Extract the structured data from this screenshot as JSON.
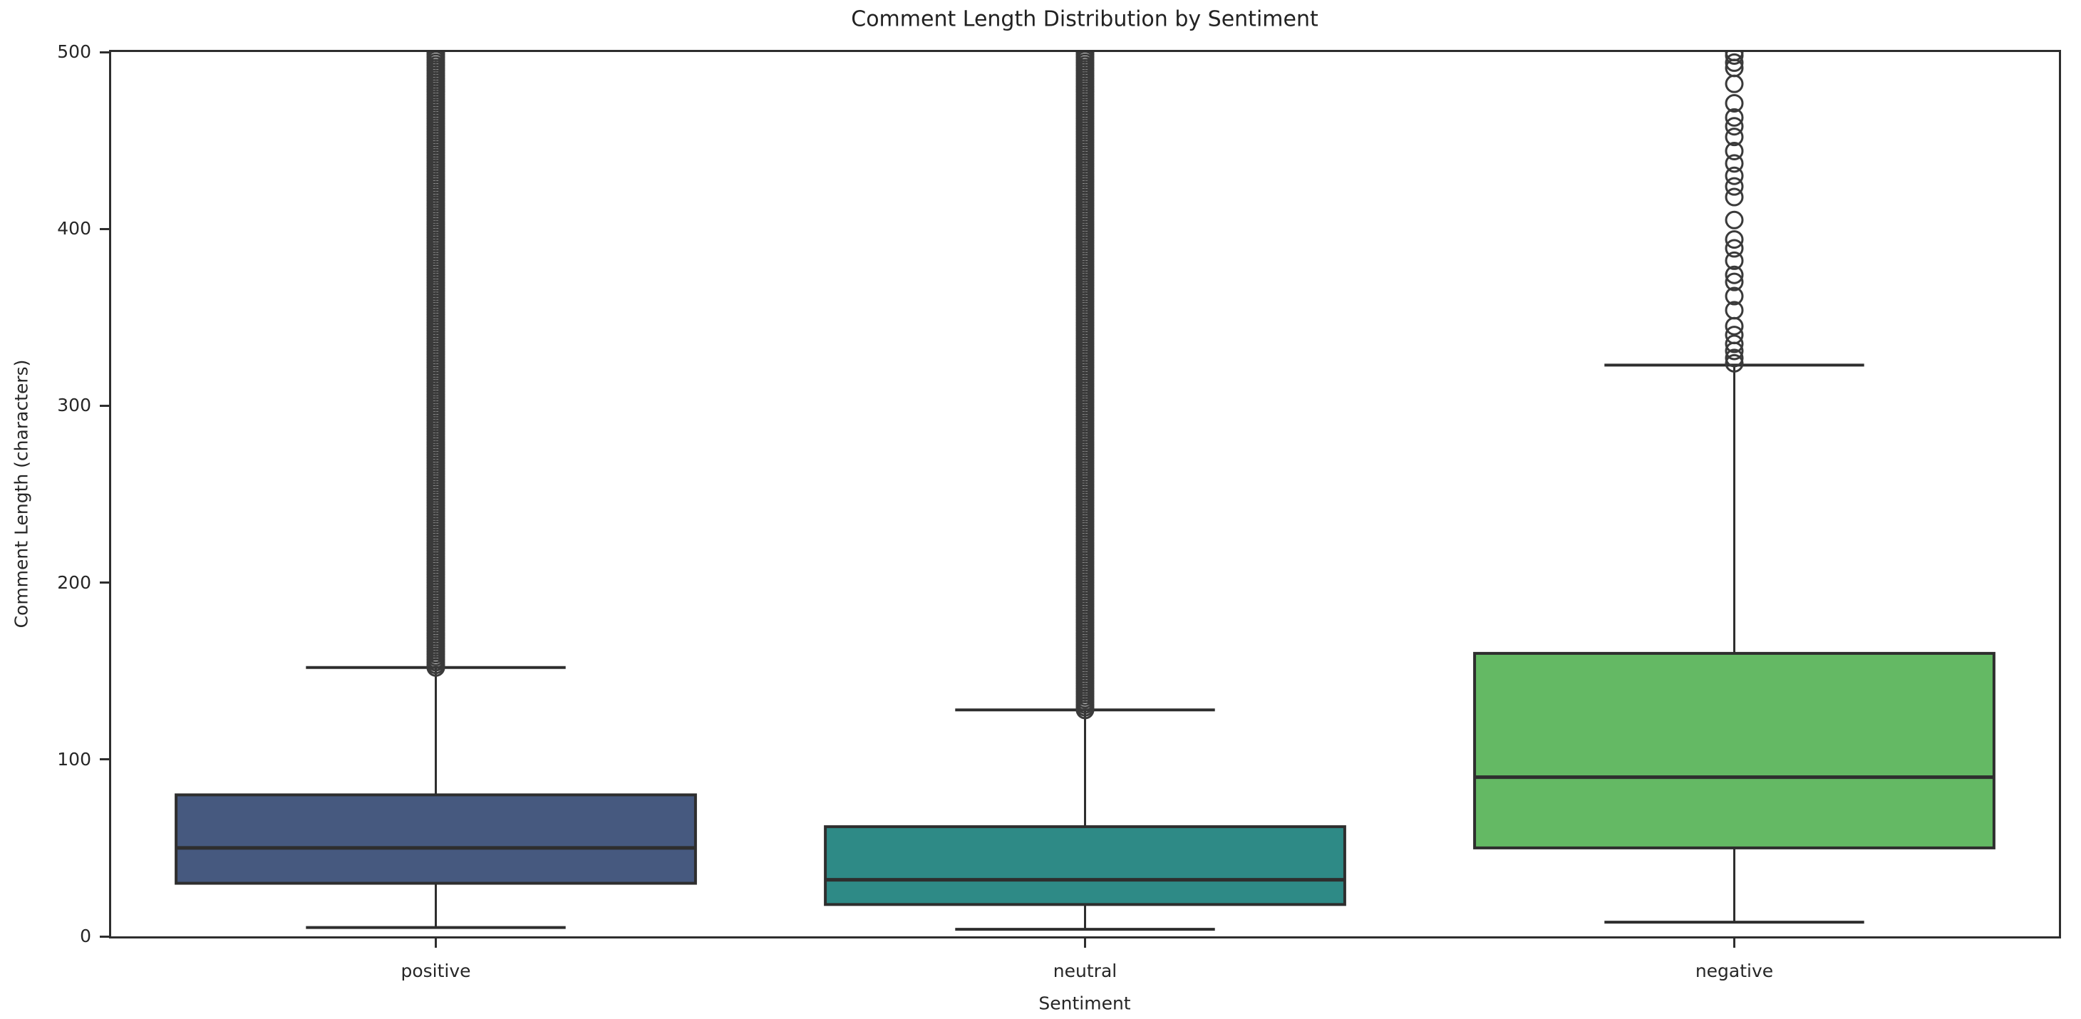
{
  "title": "Comment Length Distribution by Sentiment",
  "axes": {
    "x_label": "Sentiment",
    "y_label": "Comment Length (characters)",
    "y_ticks": [
      0,
      100,
      200,
      300,
      400,
      500
    ],
    "y_min": 0,
    "y_max": 500,
    "categories": [
      "positive",
      "neutral",
      "negative"
    ]
  },
  "colors": {
    "line": "#2e2e2e",
    "flier_edge": "#3a3a3a",
    "background": "#ffffff",
    "positive_box": "#46597f",
    "neutral_box": "#2e8a86",
    "negative_box": "#64b964"
  },
  "chart_data": {
    "type": "boxplot",
    "title": "Comment Length Distribution by Sentiment",
    "xlabel": "Sentiment",
    "ylabel": "Comment Length (characters)",
    "ylim": [
      0,
      500
    ],
    "grid": false,
    "legend": false,
    "box_width_fraction": 0.8,
    "cap_width_fraction": 0.4,
    "categories": [
      "positive",
      "neutral",
      "negative"
    ],
    "series": [
      {
        "name": "positive",
        "color": "#46597f",
        "q1": 30,
        "median": 50,
        "q3": 80,
        "whisker_low": 5,
        "whisker_high": 152,
        "outliers": {
          "type": "dense",
          "min": 152,
          "max": 500,
          "step": 1.5,
          "note": "continuous heavily-overplotted column of open-circle fliers from 152 to 500 (clipped at axis top)"
        }
      },
      {
        "name": "neutral",
        "color": "#2e8a86",
        "q1": 18,
        "median": 32,
        "q3": 62,
        "whisker_low": 4,
        "whisker_high": 128,
        "outliers": {
          "type": "dense",
          "min": 128,
          "max": 500,
          "step": 1.5,
          "note": "continuous heavily-overplotted column of open-circle fliers from 128 to 500 (clipped at axis top)"
        }
      },
      {
        "name": "negative",
        "color": "#64b964",
        "q1": 50,
        "median": 90,
        "q3": 160,
        "whisker_low": 8,
        "whisker_high": 323,
        "outliers": {
          "type": "list",
          "values": [
            500,
            498,
            494,
            491,
            482,
            471,
            463,
            458,
            452,
            444,
            437,
            430,
            424,
            418,
            405,
            394,
            389,
            382,
            374,
            370,
            362,
            354,
            345,
            340,
            335,
            331,
            327,
            324
          ]
        }
      }
    ]
  }
}
